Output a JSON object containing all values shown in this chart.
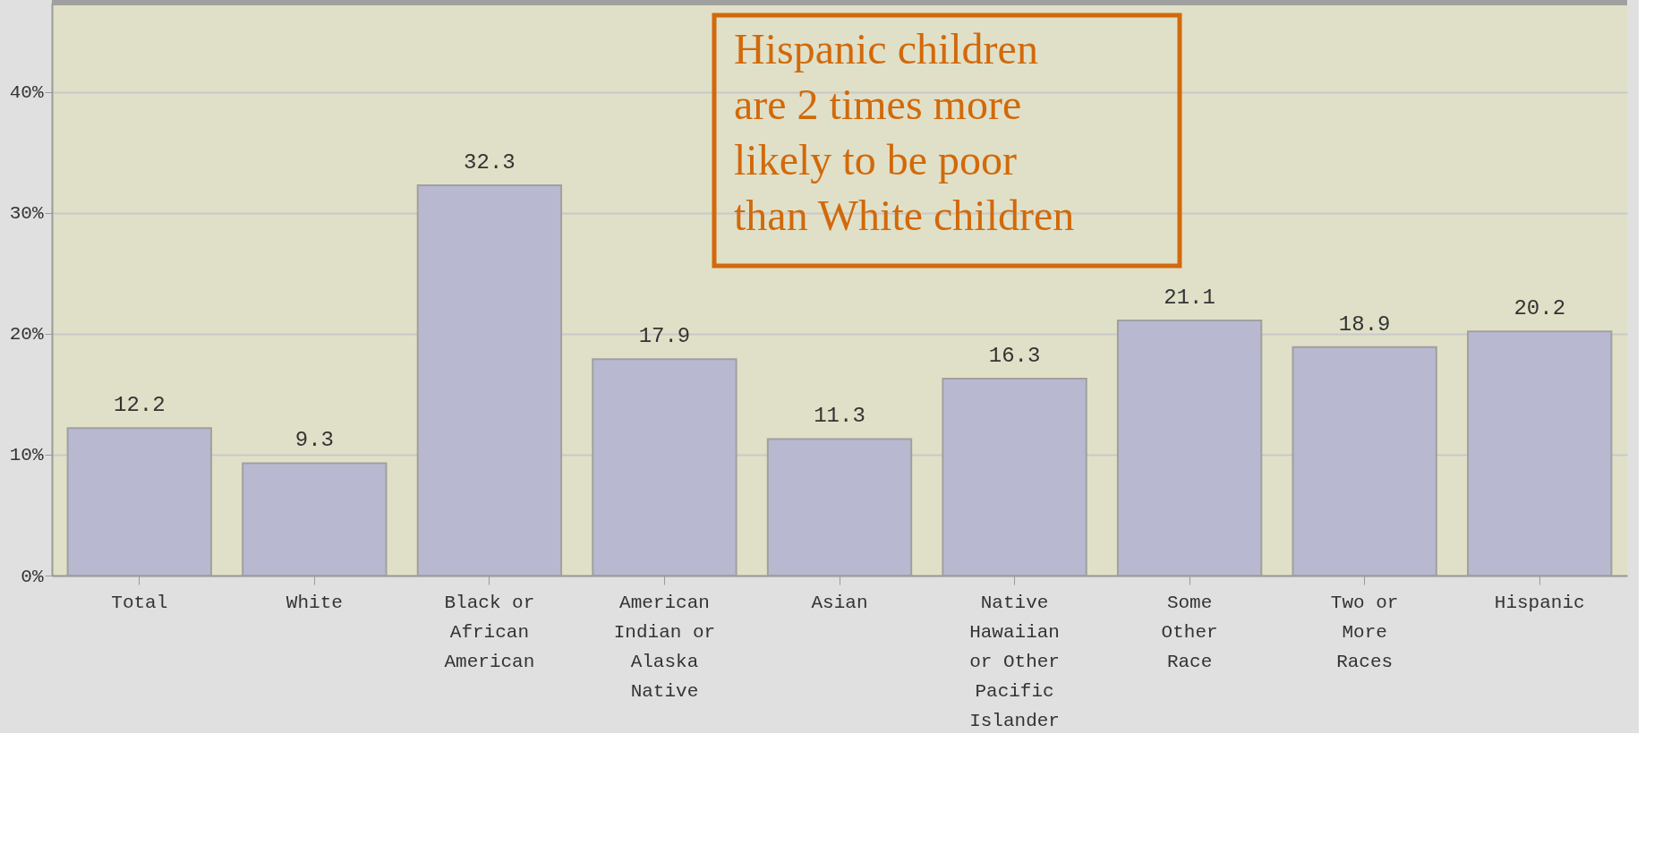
{
  "chart_data": {
    "type": "bar",
    "categories": [
      "Total",
      "White",
      "Black or African American",
      "American Indian or Alaska Native",
      "Asian",
      "Native Hawaiian or Other Pacific Islander",
      "Some Other Race",
      "Two or More Races",
      "Hispanic"
    ],
    "values": [
      12.2,
      9.3,
      32.3,
      17.9,
      11.3,
      16.3,
      21.1,
      18.9,
      20.2
    ],
    "color": "#b8b8d0",
    "ylim": [
      0,
      47.4
    ],
    "yticks": [
      {
        "value": 0,
        "label": "0%"
      },
      {
        "value": 10,
        "label": "10%"
      },
      {
        "value": 20,
        "label": "20%"
      },
      {
        "value": 30,
        "label": "30%"
      },
      {
        "value": 40,
        "label": "40%"
      }
    ],
    "grid": "y",
    "data_labels": true,
    "annotations": [
      "Hispanic children are 2 times more likely to be poor than White children"
    ]
  }
}
